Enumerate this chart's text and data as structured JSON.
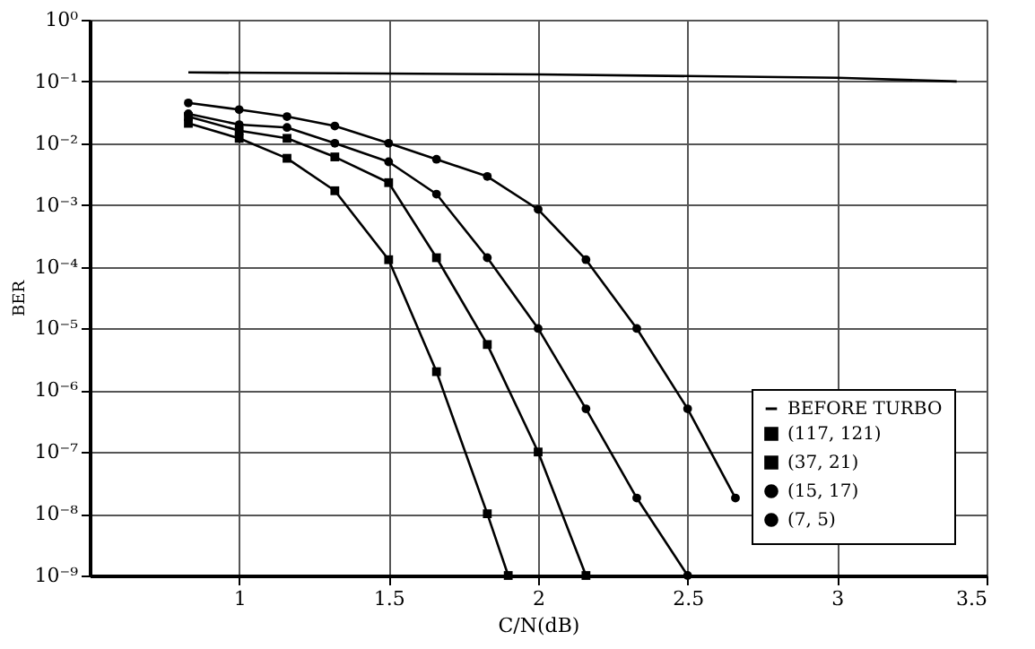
{
  "chart_data": {
    "type": "line",
    "xlabel": "C/N(dB)",
    "ylabel": "BER",
    "xlim": [
      0.5,
      3.5
    ],
    "xticks": [
      1,
      1.5,
      2,
      2.5,
      3,
      3.5
    ],
    "ylim": [
      1e-09,
      1
    ],
    "yticks": [
      {
        "value": 1,
        "label": "10⁰"
      },
      {
        "value": 0.1,
        "label": "10⁻¹"
      },
      {
        "value": 0.01,
        "label": "10⁻²"
      },
      {
        "value": 0.001,
        "label": "10⁻³"
      },
      {
        "value": 0.0001,
        "label": "10⁻⁴"
      },
      {
        "value": 1e-05,
        "label": "10⁻⁵"
      },
      {
        "value": 1e-06,
        "label": "10⁻⁶"
      },
      {
        "value": 1e-07,
        "label": "10⁻⁷"
      },
      {
        "value": 1e-08,
        "label": "10⁻⁸"
      },
      {
        "value": 1e-09,
        "label": "10⁻⁹"
      }
    ],
    "log": "y",
    "grid": true,
    "legend": "bottom right",
    "line_style": "solid",
    "series": [
      {
        "name": "BEFORE TURBO",
        "color": "#000000",
        "marker": "none",
        "x": [
          0.83,
          2.0,
          3.0,
          3.4
        ],
        "values": [
          0.14,
          0.13,
          0.115,
          0.1
        ]
      },
      {
        "name": "(117, 121)",
        "color": "#000000",
        "marker": "square",
        "x": [
          0.83,
          1.0,
          1.16,
          1.32,
          1.5,
          1.66,
          1.83,
          1.9
        ],
        "values": [
          0.021,
          0.012,
          0.0057,
          0.0017,
          0.00013,
          2e-06,
          1e-08,
          1e-09
        ]
      },
      {
        "name": "(37, 21)",
        "color": "#000000",
        "marker": "square",
        "x": [
          0.83,
          1.0,
          1.16,
          1.32,
          1.5,
          1.66,
          1.83,
          2.0,
          2.16
        ],
        "values": [
          0.027,
          0.016,
          0.012,
          0.006,
          0.0023,
          0.00014,
          5.5e-06,
          1e-07,
          1e-09
        ]
      },
      {
        "name": "(15, 17)",
        "color": "#000000",
        "marker": "circle",
        "x": [
          0.83,
          1.0,
          1.16,
          1.32,
          1.5,
          1.66,
          1.83,
          2.0,
          2.16,
          2.33,
          2.5
        ],
        "values": [
          0.03,
          0.02,
          0.018,
          0.01,
          0.005,
          0.0015,
          0.00014,
          1e-05,
          5e-07,
          1.8e-08,
          1e-09
        ]
      },
      {
        "name": "(7, 5)",
        "color": "#000000",
        "marker": "circle",
        "x": [
          0.83,
          1.0,
          1.16,
          1.32,
          1.5,
          1.66,
          1.83,
          2.0,
          2.16,
          2.33,
          2.5,
          2.66
        ],
        "values": [
          0.045,
          0.035,
          0.027,
          0.019,
          0.01,
          0.0055,
          0.0029,
          0.00085,
          0.00013,
          1e-05,
          5e-07,
          1.8e-08
        ]
      }
    ]
  }
}
